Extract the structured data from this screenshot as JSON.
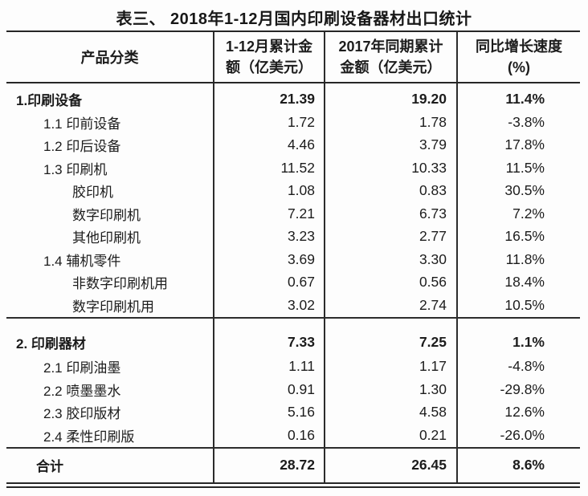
{
  "title": "表三、 2018年1-12月国内印刷设备器材出口统计",
  "colors": {
    "text": "#1c1c1c",
    "border": "#2c2c2c",
    "background": "#fdfdfd"
  },
  "table": {
    "columns": [
      {
        "line1": "产品分类",
        "line2": ""
      },
      {
        "line1": "1-12月累计金",
        "line2": "额（亿美元）"
      },
      {
        "line1": "2017年同期累计",
        "line2": "金额（亿美元）"
      },
      {
        "line1": "同比增长速度",
        "line2": "(%)"
      }
    ],
    "rows": [
      {
        "name": "1.印刷设备",
        "amount_2018": "21.39",
        "amount_2017": "19.20",
        "growth": "11.4%"
      },
      {
        "name": "1.1 印前设备",
        "amount_2018": "1.72",
        "amount_2017": "1.78",
        "growth": "-3.8%"
      },
      {
        "name": "1.2 印后设备",
        "amount_2018": "4.46",
        "amount_2017": "3.79",
        "growth": "17.8%"
      },
      {
        "name": "1.3 印刷机",
        "amount_2018": "11.52",
        "amount_2017": "10.33",
        "growth": "11.5%"
      },
      {
        "name": "胶印机",
        "amount_2018": "1.08",
        "amount_2017": "0.83",
        "growth": "30.5%"
      },
      {
        "name": "数字印刷机",
        "amount_2018": "7.21",
        "amount_2017": "6.73",
        "growth": "7.2%"
      },
      {
        "name": "其他印刷机",
        "amount_2018": "3.23",
        "amount_2017": "2.77",
        "growth": "16.5%"
      },
      {
        "name": "1.4 辅机零件",
        "amount_2018": "3.69",
        "amount_2017": "3.30",
        "growth": "11.8%"
      },
      {
        "name": "非数字印刷机用",
        "amount_2018": "0.67",
        "amount_2017": "0.56",
        "growth": "18.4%"
      },
      {
        "name": "数字印刷机用",
        "amount_2018": "3.02",
        "amount_2017": "2.74",
        "growth": "10.5%"
      },
      {
        "name": "2. 印刷器材",
        "amount_2018": "7.33",
        "amount_2017": "7.25",
        "growth": "1.1%"
      },
      {
        "name": "2.1 印刷油墨",
        "amount_2018": "1.11",
        "amount_2017": "1.17",
        "growth": "-4.8%"
      },
      {
        "name": "2.2 喷墨墨水",
        "amount_2018": "0.91",
        "amount_2017": "1.30",
        "growth": "-29.8%"
      },
      {
        "name": "2.3 胶印版材",
        "amount_2018": "5.16",
        "amount_2017": "4.58",
        "growth": "12.6%"
      },
      {
        "name": "2.4 柔性印刷版",
        "amount_2018": "0.16",
        "amount_2017": "0.21",
        "growth": "-26.0%"
      },
      {
        "name": "合计",
        "amount_2018": "28.72",
        "amount_2017": "26.45",
        "growth": "8.6%"
      }
    ]
  }
}
